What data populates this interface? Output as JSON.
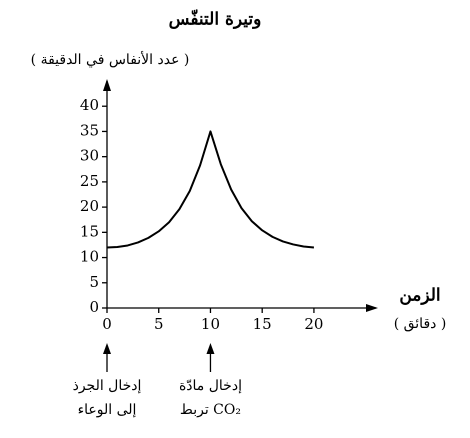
{
  "chart_data": {
    "type": "line",
    "y_label": "وتيرة التنفّس",
    "y_sublabel": "( عدد الأنفاس في الدقيقة )",
    "x_label": "الزمن",
    "x_sublabel": "( دقائق )",
    "x": [
      0,
      1,
      2,
      3,
      4,
      5,
      6,
      7,
      8,
      9,
      10,
      11,
      12,
      13,
      14,
      15,
      16,
      17,
      18,
      19,
      20
    ],
    "series": [
      {
        "color": "#000000",
        "values": [
          12,
          12.1,
          12.4,
          13,
          13.9,
          15.2,
          17,
          19.6,
          23.2,
          28.3,
          35,
          28.5,
          23.5,
          19.8,
          17.2,
          15.4,
          14.1,
          13.2,
          12.6,
          12.2,
          12
        ]
      }
    ],
    "xlim": [
      0,
      26
    ],
    "ylim": [
      0,
      45
    ],
    "xticks": [
      0,
      5,
      10,
      15,
      20
    ],
    "yticks": [
      0,
      5,
      10,
      15,
      20,
      25,
      30,
      35,
      40
    ],
    "annotations": [
      {
        "x": 0,
        "lines": [
          "إدخال الجرذ",
          "إلى الوعاء"
        ]
      },
      {
        "x": 10,
        "lines": [
          "إدخال مادّة",
          "تربط CO₂"
        ]
      }
    ]
  }
}
